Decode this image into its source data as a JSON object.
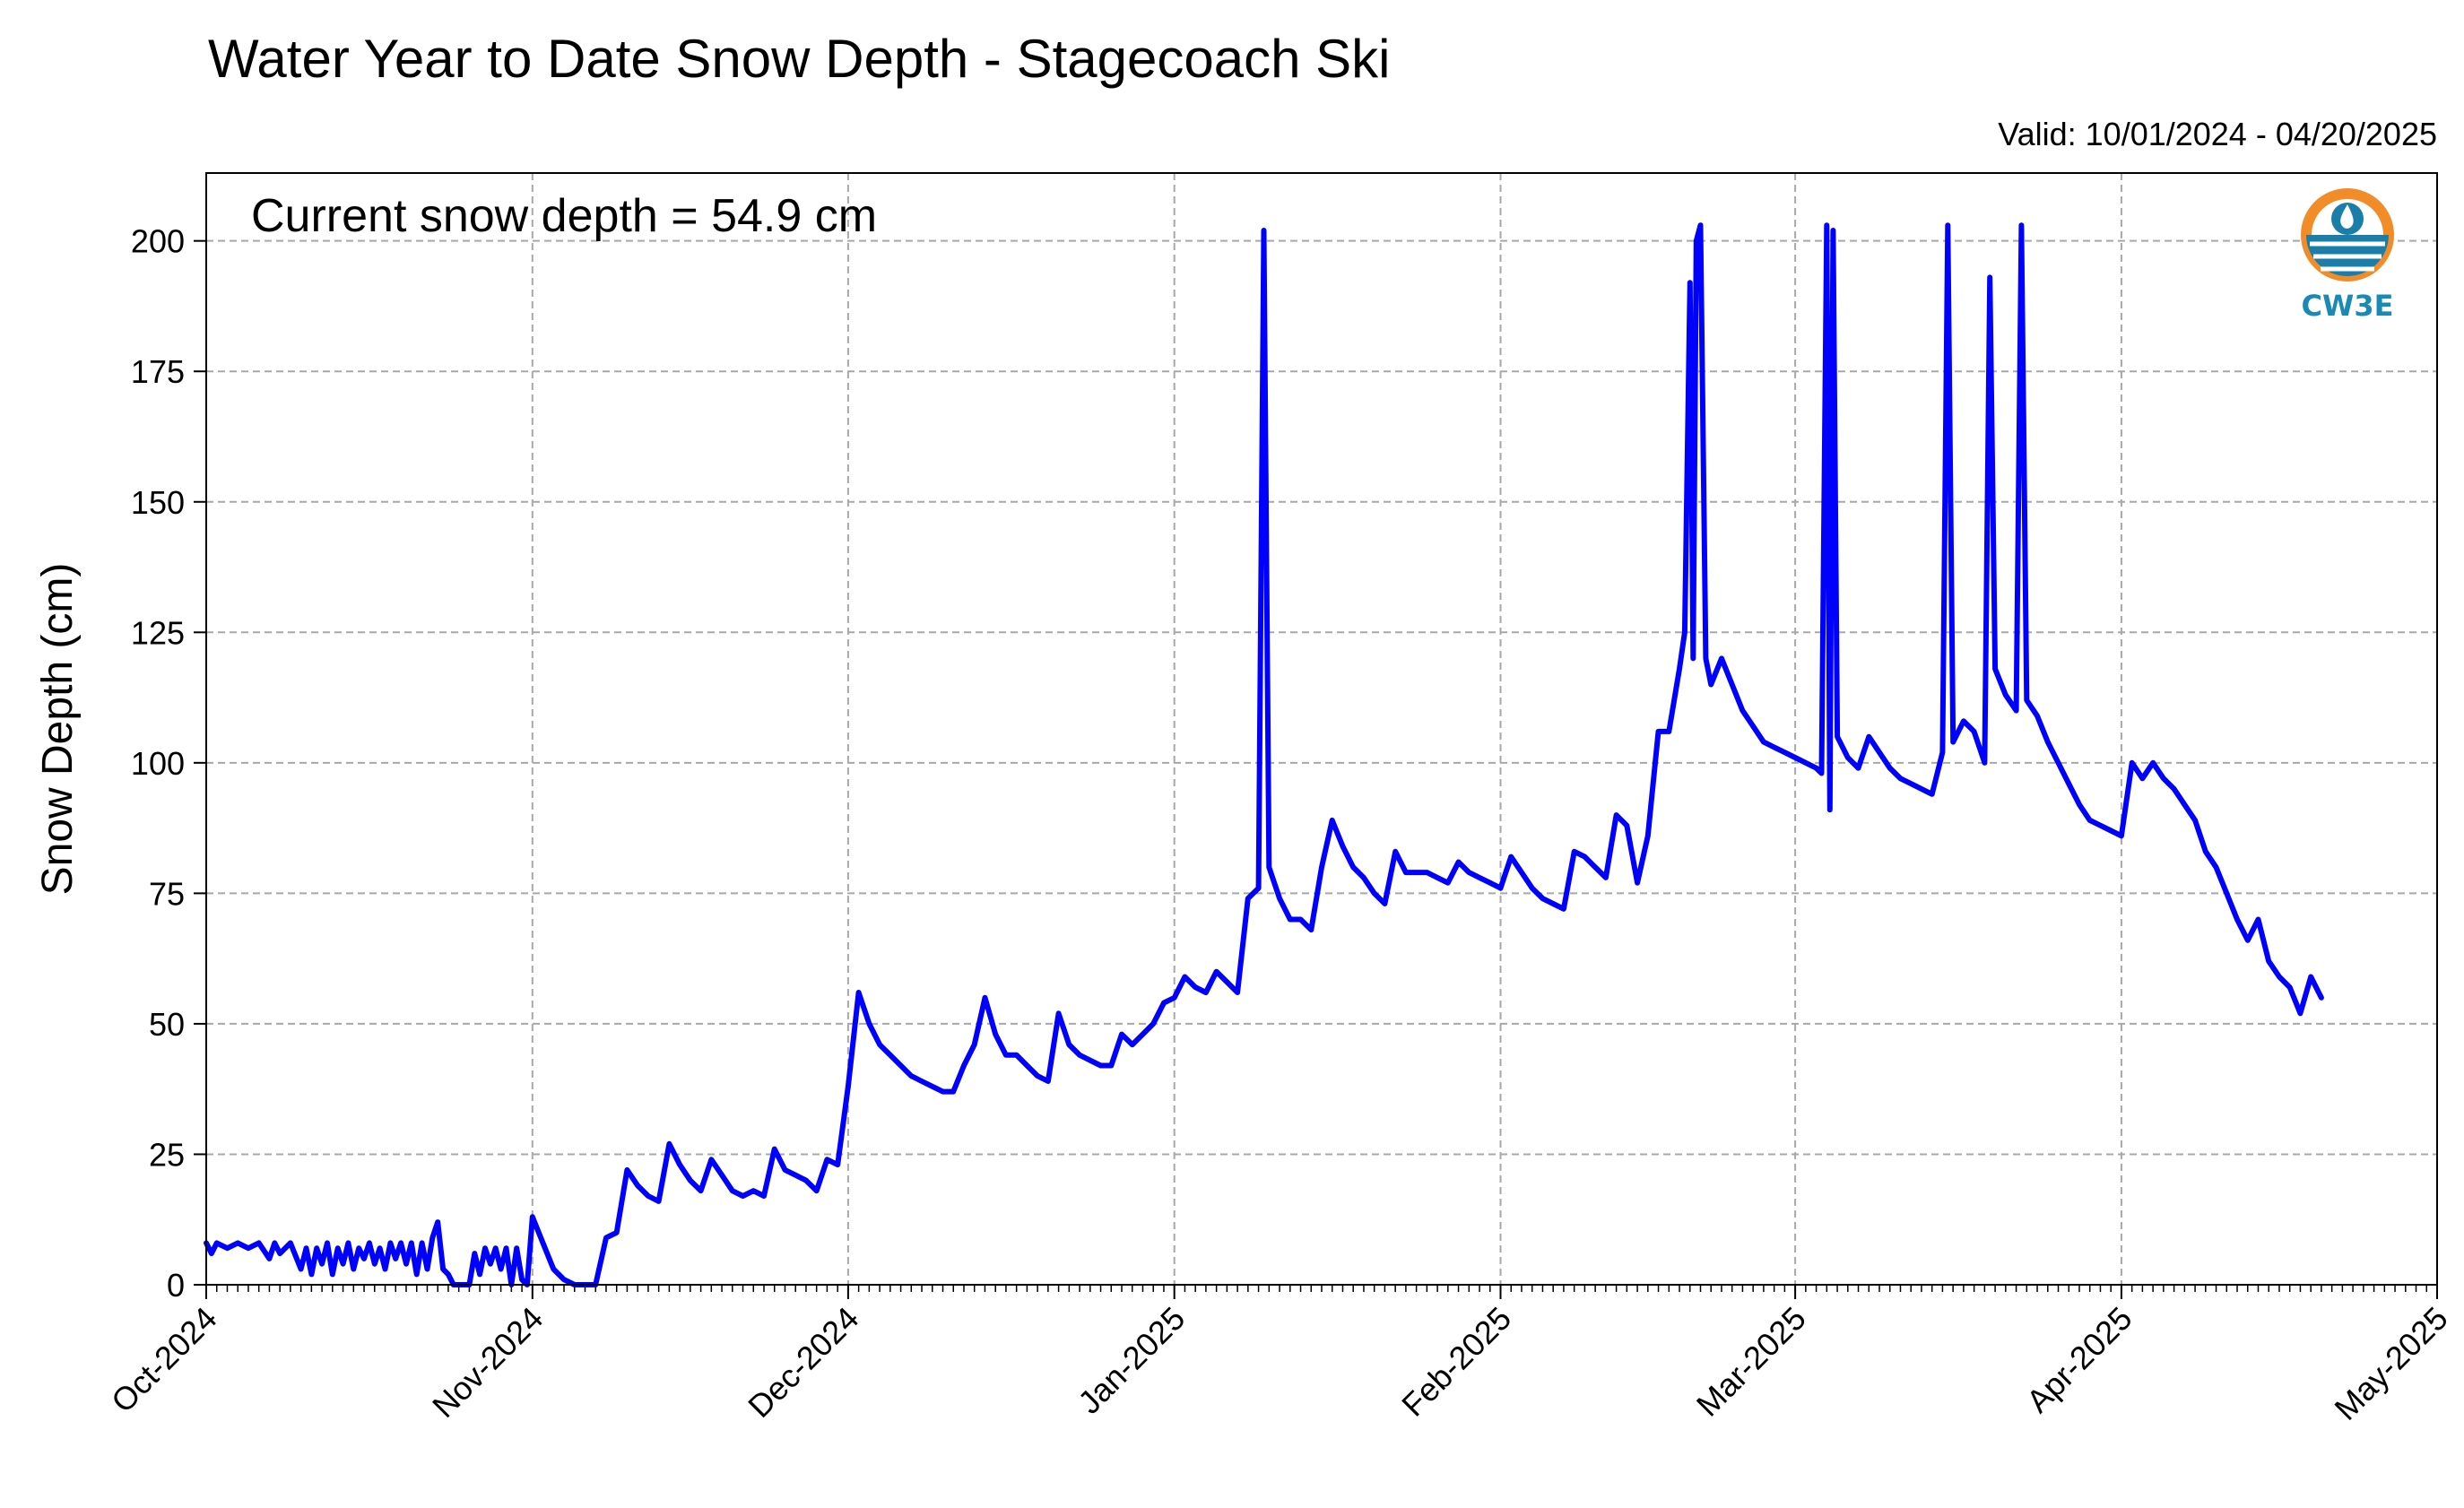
{
  "chart_data": {
    "type": "line",
    "title": "Water Year to Date Snow Depth - Stagecoach Ski",
    "subtitle": "Valid: 10/01/2024 - 04/20/2025",
    "annotation": "Current snow depth = 54.9 cm",
    "xlabel": "",
    "ylabel": "Snow Depth (cm)",
    "xlim": [
      "2024-10-01",
      "2025-05-01"
    ],
    "ylim": [
      0,
      213
    ],
    "grid": true,
    "line_color": "#0000ff",
    "x_ticks": [
      {
        "date": "2024-10-01",
        "label": "Oct-2024"
      },
      {
        "date": "2024-11-01",
        "label": "Nov-2024"
      },
      {
        "date": "2024-12-01",
        "label": "Dec-2024"
      },
      {
        "date": "2025-01-01",
        "label": "Jan-2025"
      },
      {
        "date": "2025-02-01",
        "label": "Feb-2025"
      },
      {
        "date": "2025-03-01",
        "label": "Mar-2025"
      },
      {
        "date": "2025-04-01",
        "label": "Apr-2025"
      },
      {
        "date": "2025-05-01",
        "label": "May-2025"
      }
    ],
    "y_ticks": [
      0,
      25,
      50,
      75,
      100,
      125,
      150,
      175,
      200
    ],
    "series": [
      {
        "name": "",
        "points": [
          [
            "2024-10-01",
            8
          ],
          [
            "2024-10-01.5",
            6
          ],
          [
            "2024-10-02",
            8
          ],
          [
            "2024-10-03",
            7
          ],
          [
            "2024-10-04",
            8
          ],
          [
            "2024-10-05",
            7
          ],
          [
            "2024-10-06",
            8
          ],
          [
            "2024-10-07",
            5
          ],
          [
            "2024-10-07.5",
            8
          ],
          [
            "2024-10-08",
            6
          ],
          [
            "2024-10-09",
            8
          ],
          [
            "2024-10-10",
            3
          ],
          [
            "2024-10-10.5",
            7
          ],
          [
            "2024-10-11",
            2
          ],
          [
            "2024-10-11.5",
            7
          ],
          [
            "2024-10-12",
            4
          ],
          [
            "2024-10-12.5",
            8
          ],
          [
            "2024-10-13",
            2
          ],
          [
            "2024-10-13.5",
            7
          ],
          [
            "2024-10-14",
            4
          ],
          [
            "2024-10-14.5",
            8
          ],
          [
            "2024-10-15",
            3
          ],
          [
            "2024-10-15.5",
            7
          ],
          [
            "2024-10-16",
            5
          ],
          [
            "2024-10-16.5",
            8
          ],
          [
            "2024-10-17",
            4
          ],
          [
            "2024-10-17.5",
            7
          ],
          [
            "2024-10-18",
            3
          ],
          [
            "2024-10-18.5",
            8
          ],
          [
            "2024-10-19",
            5
          ],
          [
            "2024-10-19.5",
            8
          ],
          [
            "2024-10-20",
            4
          ],
          [
            "2024-10-20.5",
            8
          ],
          [
            "2024-10-21",
            2
          ],
          [
            "2024-10-21.5",
            8
          ],
          [
            "2024-10-22",
            3
          ],
          [
            "2024-10-22.5",
            9
          ],
          [
            "2024-10-23",
            12
          ],
          [
            "2024-10-23.5",
            3
          ],
          [
            "2024-10-24",
            2
          ],
          [
            "2024-10-24.5",
            0
          ],
          [
            "2024-10-26",
            0
          ],
          [
            "2024-10-26.5",
            6
          ],
          [
            "2024-10-27",
            2
          ],
          [
            "2024-10-27.5",
            7
          ],
          [
            "2024-10-28",
            4
          ],
          [
            "2024-10-28.5",
            7
          ],
          [
            "2024-10-29",
            3
          ],
          [
            "2024-10-29.5",
            7
          ],
          [
            "2024-10-30",
            0
          ],
          [
            "2024-10-30.5",
            7
          ],
          [
            "2024-10-31",
            1
          ],
          [
            "2024-10-31.5",
            0
          ],
          [
            "2024-11-01",
            13
          ],
          [
            "2024-11-02",
            8
          ],
          [
            "2024-11-03",
            3
          ],
          [
            "2024-11-04",
            1
          ],
          [
            "2024-11-05",
            0
          ],
          [
            "2024-11-07",
            0
          ],
          [
            "2024-11-08",
            9
          ],
          [
            "2024-11-09",
            10
          ],
          [
            "2024-11-10",
            22
          ],
          [
            "2024-11-11",
            19
          ],
          [
            "2024-11-12",
            17
          ],
          [
            "2024-11-13",
            16
          ],
          [
            "2024-11-14",
            27
          ],
          [
            "2024-11-15",
            23
          ],
          [
            "2024-11-16",
            20
          ],
          [
            "2024-11-17",
            18
          ],
          [
            "2024-11-18",
            24
          ],
          [
            "2024-11-19",
            21
          ],
          [
            "2024-11-20",
            18
          ],
          [
            "2024-11-21",
            17
          ],
          [
            "2024-11-22",
            18
          ],
          [
            "2024-11-23",
            17
          ],
          [
            "2024-11-24",
            26
          ],
          [
            "2024-11-25",
            22
          ],
          [
            "2024-11-26",
            21
          ],
          [
            "2024-11-27",
            20
          ],
          [
            "2024-11-28",
            18
          ],
          [
            "2024-11-29",
            24
          ],
          [
            "2024-11-30",
            23
          ],
          [
            "2024-12-01",
            38
          ],
          [
            "2024-12-02",
            56
          ],
          [
            "2024-12-03",
            50
          ],
          [
            "2024-12-04",
            46
          ],
          [
            "2024-12-05",
            44
          ],
          [
            "2024-12-06",
            42
          ],
          [
            "2024-12-07",
            40
          ],
          [
            "2024-12-08",
            39
          ],
          [
            "2024-12-09",
            38
          ],
          [
            "2024-12-10",
            37
          ],
          [
            "2024-12-11",
            37
          ],
          [
            "2024-12-12",
            42
          ],
          [
            "2024-12-13",
            46
          ],
          [
            "2024-12-14",
            55
          ],
          [
            "2024-12-15",
            48
          ],
          [
            "2024-12-16",
            44
          ],
          [
            "2024-12-17",
            44
          ],
          [
            "2024-12-18",
            42
          ],
          [
            "2024-12-19",
            40
          ],
          [
            "2024-12-20",
            39
          ],
          [
            "2024-12-21",
            52
          ],
          [
            "2024-12-22",
            46
          ],
          [
            "2024-12-23",
            44
          ],
          [
            "2024-12-24",
            43
          ],
          [
            "2024-12-25",
            42
          ],
          [
            "2024-12-26",
            42
          ],
          [
            "2024-12-27",
            48
          ],
          [
            "2024-12-28",
            46
          ],
          [
            "2024-12-29",
            48
          ],
          [
            "2024-12-30",
            50
          ],
          [
            "2024-12-31",
            54
          ],
          [
            "2025-01-01",
            55
          ],
          [
            "2025-01-02",
            59
          ],
          [
            "2025-01-03",
            57
          ],
          [
            "2025-01-04",
            56
          ],
          [
            "2025-01-05",
            60
          ],
          [
            "2025-01-06",
            58
          ],
          [
            "2025-01-07",
            56
          ],
          [
            "2025-01-08",
            74
          ],
          [
            "2025-01-09",
            76
          ],
          [
            "2025-01-09.5",
            202
          ],
          [
            "2025-01-10",
            80
          ],
          [
            "2025-01-11",
            74
          ],
          [
            "2025-01-12",
            70
          ],
          [
            "2025-01-13",
            70
          ],
          [
            "2025-01-14",
            68
          ],
          [
            "2025-01-15",
            80
          ],
          [
            "2025-01-16",
            89
          ],
          [
            "2025-01-17",
            84
          ],
          [
            "2025-01-18",
            80
          ],
          [
            "2025-01-19",
            78
          ],
          [
            "2025-01-20",
            75
          ],
          [
            "2025-01-21",
            73
          ],
          [
            "2025-01-22",
            83
          ],
          [
            "2025-01-23",
            79
          ],
          [
            "2025-01-24",
            79
          ],
          [
            "2025-01-25",
            79
          ],
          [
            "2025-01-26",
            78
          ],
          [
            "2025-01-27",
            77
          ],
          [
            "2025-01-28",
            81
          ],
          [
            "2025-01-29",
            79
          ],
          [
            "2025-01-30",
            78
          ],
          [
            "2025-01-31",
            77
          ],
          [
            "2025-02-01",
            76
          ],
          [
            "2025-02-02",
            82
          ],
          [
            "2025-02-03",
            79
          ],
          [
            "2025-02-04",
            76
          ],
          [
            "2025-02-05",
            74
          ],
          [
            "2025-02-06",
            73
          ],
          [
            "2025-02-07",
            72
          ],
          [
            "2025-02-08",
            83
          ],
          [
            "2025-02-09",
            82
          ],
          [
            "2025-02-10",
            80
          ],
          [
            "2025-02-11",
            78
          ],
          [
            "2025-02-12",
            90
          ],
          [
            "2025-02-13",
            88
          ],
          [
            "2025-02-14",
            77
          ],
          [
            "2025-02-15",
            86
          ],
          [
            "2025-02-16",
            106
          ],
          [
            "2025-02-17",
            106
          ],
          [
            "2025-02-18",
            118
          ],
          [
            "2025-02-18.5",
            125
          ],
          [
            "2025-02-19",
            192
          ],
          [
            "2025-02-19.3",
            120
          ],
          [
            "2025-02-19.6",
            200
          ],
          [
            "2025-02-20",
            203
          ],
          [
            "2025-02-20.5",
            120
          ],
          [
            "2025-02-21",
            115
          ],
          [
            "2025-02-22",
            120
          ],
          [
            "2025-02-23",
            115
          ],
          [
            "2025-02-24",
            110
          ],
          [
            "2025-02-25",
            107
          ],
          [
            "2025-02-26",
            104
          ],
          [
            "2025-02-27",
            103
          ],
          [
            "2025-02-28",
            102
          ],
          [
            "2025-03-01",
            101
          ],
          [
            "2025-03-02",
            100
          ],
          [
            "2025-03-03",
            99
          ],
          [
            "2025-03-03.5",
            98
          ],
          [
            "2025-03-04",
            203
          ],
          [
            "2025-03-04.3",
            91
          ],
          [
            "2025-03-04.6",
            202
          ],
          [
            "2025-03-05",
            105
          ],
          [
            "2025-03-06",
            101
          ],
          [
            "2025-03-07",
            99
          ],
          [
            "2025-03-08",
            105
          ],
          [
            "2025-03-09",
            102
          ],
          [
            "2025-03-10",
            99
          ],
          [
            "2025-03-11",
            97
          ],
          [
            "2025-03-12",
            96
          ],
          [
            "2025-03-13",
            95
          ],
          [
            "2025-03-14",
            94
          ],
          [
            "2025-03-15",
            102
          ],
          [
            "2025-03-15.5",
            203
          ],
          [
            "2025-03-16",
            104
          ],
          [
            "2025-03-17",
            108
          ],
          [
            "2025-03-18",
            106
          ],
          [
            "2025-03-19",
            100
          ],
          [
            "2025-03-19.5",
            193
          ],
          [
            "2025-03-20",
            118
          ],
          [
            "2025-03-21",
            113
          ],
          [
            "2025-03-22",
            110
          ],
          [
            "2025-03-22.5",
            203
          ],
          [
            "2025-03-23",
            112
          ],
          [
            "2025-03-24",
            109
          ],
          [
            "2025-03-25",
            104
          ],
          [
            "2025-03-26",
            100
          ],
          [
            "2025-03-27",
            96
          ],
          [
            "2025-03-28",
            92
          ],
          [
            "2025-03-29",
            89
          ],
          [
            "2025-03-30",
            88
          ],
          [
            "2025-03-31",
            87
          ],
          [
            "2025-04-01",
            86
          ],
          [
            "2025-04-02",
            100
          ],
          [
            "2025-04-03",
            97
          ],
          [
            "2025-04-04",
            100
          ],
          [
            "2025-04-05",
            97
          ],
          [
            "2025-04-06",
            95
          ],
          [
            "2025-04-07",
            92
          ],
          [
            "2025-04-08",
            89
          ],
          [
            "2025-04-09",
            83
          ],
          [
            "2025-04-10",
            80
          ],
          [
            "2025-04-11",
            75
          ],
          [
            "2025-04-12",
            70
          ],
          [
            "2025-04-13",
            66
          ],
          [
            "2025-04-14",
            70
          ],
          [
            "2025-04-15",
            62
          ],
          [
            "2025-04-16",
            59
          ],
          [
            "2025-04-17",
            57
          ],
          [
            "2025-04-18",
            52
          ],
          [
            "2025-04-19",
            59
          ],
          [
            "2025-04-20",
            55
          ]
        ]
      }
    ]
  },
  "logo": {
    "text": "CW3E",
    "icon": "water-drop-logo-icon"
  }
}
